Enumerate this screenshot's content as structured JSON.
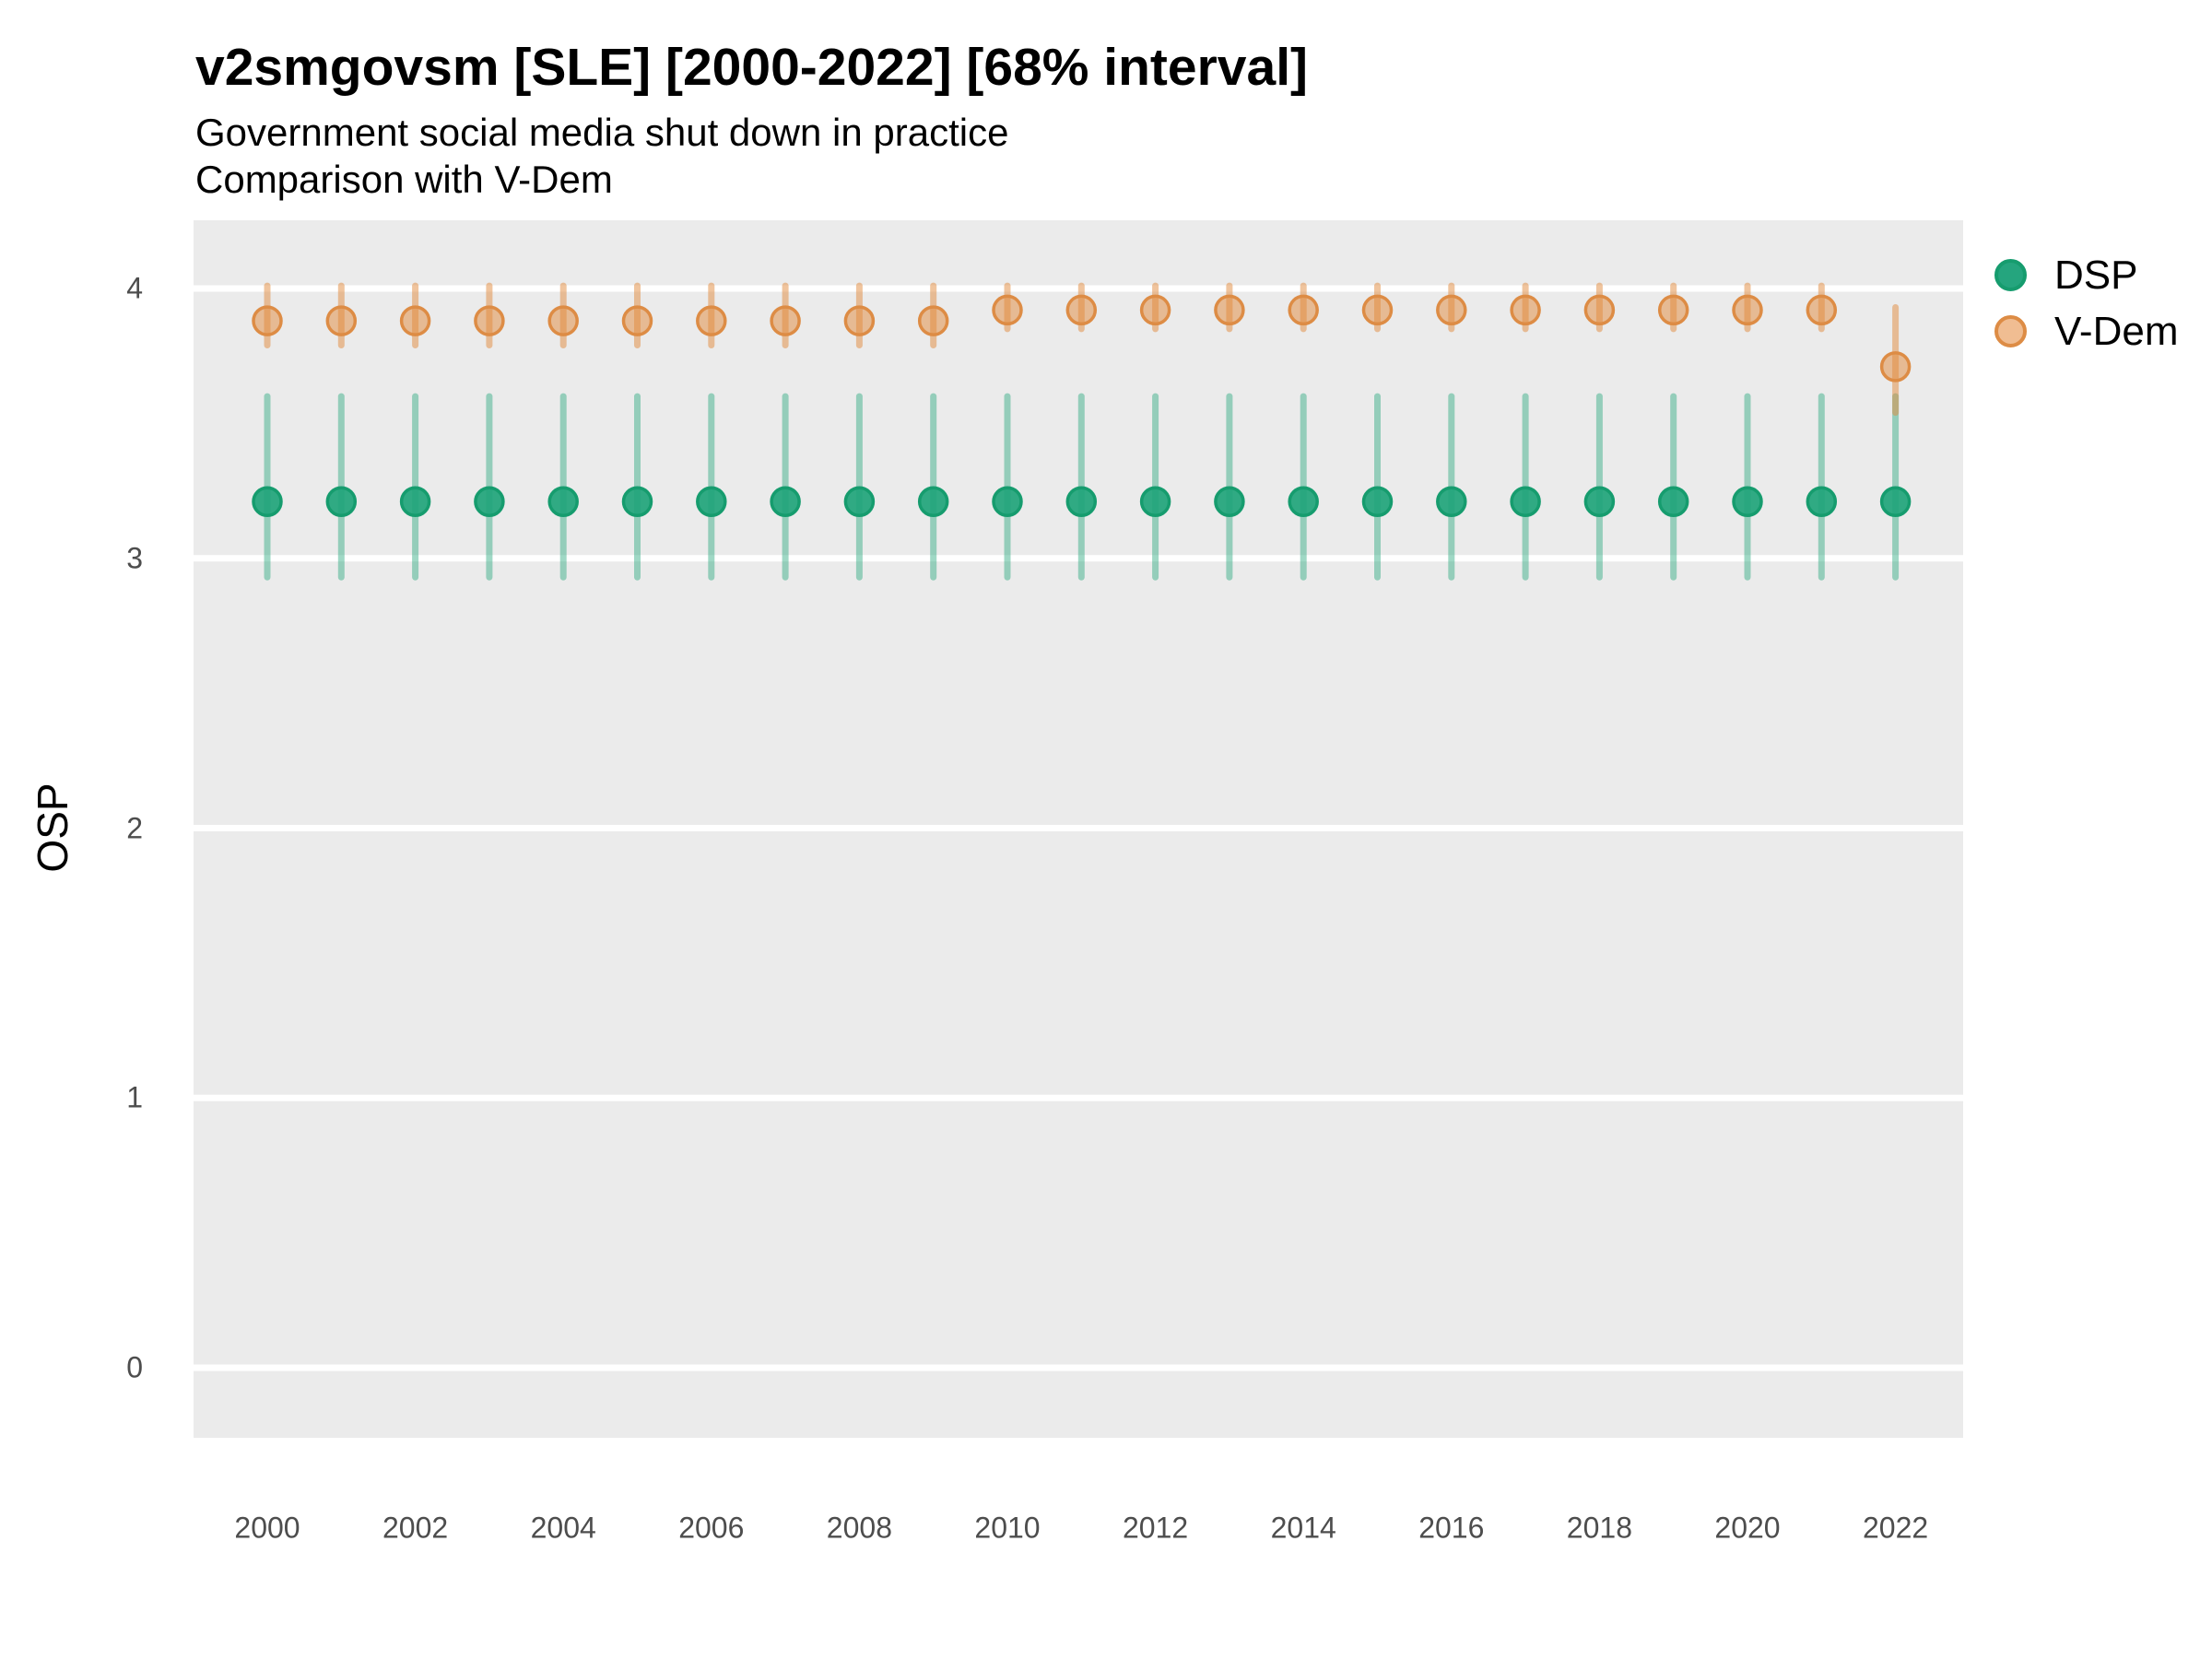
{
  "chart_data": {
    "type": "pointrange",
    "title": "v2smgovsm [SLE] [2000-2022] [68% interval]",
    "subtitle1": "Government social media shut down in practice",
    "subtitle2": "Comparison with V-Dem",
    "ylabel": "OSP",
    "xlabel": "",
    "ylim": [
      -0.25,
      4.25
    ],
    "xlim": [
      1999,
      2022.9
    ],
    "yticks": [
      0,
      1,
      2,
      3,
      4
    ],
    "xticks": [
      2000,
      2002,
      2004,
      2006,
      2008,
      2010,
      2012,
      2014,
      2016,
      2018,
      2020,
      2022
    ],
    "grid": "horizontal-major-only",
    "panel_background": "#EBEBEB",
    "gridline_color": "#FFFFFF",
    "legend_position": "right",
    "interval_note": "68% interval shown as vertical line range around each point estimate",
    "x": [
      2000,
      2001,
      2002,
      2003,
      2004,
      2005,
      2006,
      2007,
      2008,
      2009,
      2010,
      2011,
      2012,
      2013,
      2014,
      2015,
      2016,
      2017,
      2018,
      2019,
      2020,
      2021,
      2022
    ],
    "series": [
      {
        "name": "DSP",
        "point_fill": "rgba(32,164,121,0.92)",
        "point_stroke": "#169c6e",
        "line_color": "rgba(42,168,126,0.45)",
        "legend_fill": "#25a57e",
        "legend_stroke": "#169c6e",
        "est": [
          3.21,
          3.21,
          3.21,
          3.21,
          3.21,
          3.21,
          3.21,
          3.21,
          3.21,
          3.21,
          3.21,
          3.21,
          3.21,
          3.21,
          3.21,
          3.21,
          3.21,
          3.21,
          3.21,
          3.21,
          3.21,
          3.21,
          3.21
        ],
        "lo": [
          2.93,
          2.93,
          2.93,
          2.93,
          2.93,
          2.93,
          2.93,
          2.93,
          2.93,
          2.93,
          2.93,
          2.93,
          2.93,
          2.93,
          2.93,
          2.93,
          2.93,
          2.93,
          2.93,
          2.93,
          2.93,
          2.93,
          2.93
        ],
        "hi": [
          3.6,
          3.6,
          3.6,
          3.6,
          3.6,
          3.6,
          3.6,
          3.6,
          3.6,
          3.6,
          3.6,
          3.6,
          3.6,
          3.6,
          3.6,
          3.6,
          3.6,
          3.6,
          3.6,
          3.6,
          3.6,
          3.6,
          3.6
        ]
      },
      {
        "name": "V-Dem",
        "point_fill": "rgba(226,138,60,0.5)",
        "point_stroke": "#dd8c45",
        "line_color": "rgba(226,138,60,0.5)",
        "legend_fill": "#f0bd92",
        "legend_stroke": "#dd8c45",
        "est": [
          3.88,
          3.88,
          3.88,
          3.88,
          3.88,
          3.88,
          3.88,
          3.88,
          3.88,
          3.88,
          3.92,
          3.92,
          3.92,
          3.92,
          3.92,
          3.92,
          3.92,
          3.92,
          3.92,
          3.92,
          3.92,
          3.92,
          3.71
        ],
        "lo": [
          3.79,
          3.79,
          3.79,
          3.79,
          3.79,
          3.79,
          3.79,
          3.79,
          3.79,
          3.79,
          3.85,
          3.85,
          3.85,
          3.85,
          3.85,
          3.85,
          3.85,
          3.85,
          3.85,
          3.85,
          3.85,
          3.85,
          3.54
        ],
        "hi": [
          4.01,
          4.01,
          4.01,
          4.01,
          4.01,
          4.01,
          4.01,
          4.01,
          4.01,
          4.01,
          4.01,
          4.01,
          4.01,
          4.01,
          4.01,
          4.01,
          4.01,
          4.01,
          4.01,
          4.01,
          4.01,
          4.01,
          3.93
        ]
      }
    ]
  }
}
